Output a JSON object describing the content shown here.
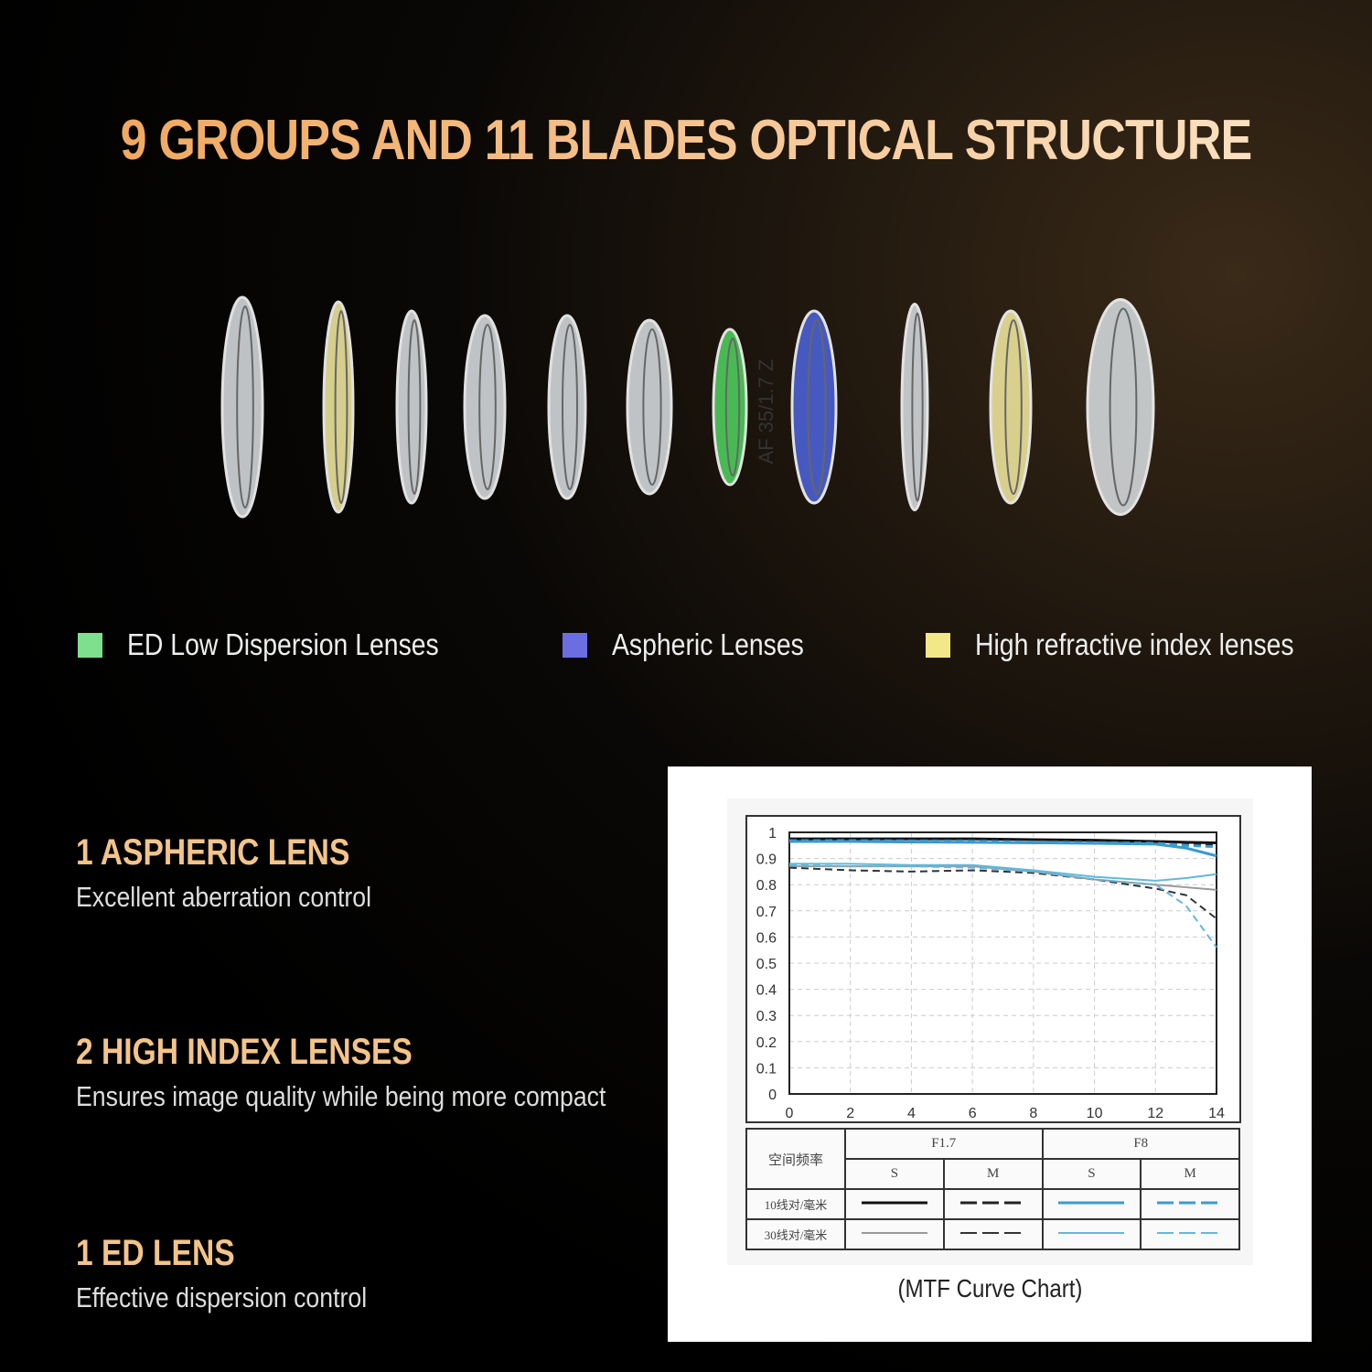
{
  "title": "9 GROUPS AND 11 BLADES OPTICAL STRUCTURE",
  "lens_marking": "AF 35/1.7 Z",
  "lenses": [
    "clear",
    "yellow",
    "clear",
    "clear",
    "clear",
    "clear",
    "green",
    "blue",
    "clear",
    "yellow",
    "clear"
  ],
  "legend": [
    {
      "label": "ED Low Dispersion Lenses",
      "color": "#7ee08e"
    },
    {
      "label": "Aspheric Lenses",
      "color": "#6b6ee0"
    },
    {
      "label": "High refractive index lenses",
      "color": "#f2e88a"
    }
  ],
  "features": [
    {
      "title": "1 ASPHERIC LENS",
      "desc": "Excellent aberration control"
    },
    {
      "title": "2 HIGH INDEX LENSES",
      "desc": "Ensures image quality while being more compact"
    },
    {
      "title": "1 ED LENS",
      "desc": "Effective dispersion control"
    }
  ],
  "chart_caption": "(MTF Curve Chart)",
  "chart_data": {
    "type": "line",
    "xlim": [
      0,
      14
    ],
    "ylim": [
      0,
      1
    ],
    "grid": true,
    "xticks": [
      "0",
      "2",
      "4",
      "6",
      "8",
      "10",
      "12",
      "14"
    ],
    "yticks": [
      "0",
      "0.1",
      "0.2",
      "0.3",
      "0.4",
      "0.5",
      "0.6",
      "0.7",
      "0.8",
      "0.9",
      "1"
    ],
    "x": [
      0,
      2,
      4,
      6,
      8,
      10,
      12,
      13,
      14
    ],
    "series": [
      {
        "id": "10-f17-s",
        "color": "#111111",
        "dash": false,
        "width": 3,
        "values": [
          0.975,
          0.975,
          0.975,
          0.975,
          0.972,
          0.97,
          0.965,
          0.962,
          0.96
        ]
      },
      {
        "id": "10-f17-m",
        "color": "#222222",
        "dash": true,
        "width": 3,
        "values": [
          0.97,
          0.97,
          0.97,
          0.97,
          0.965,
          0.965,
          0.96,
          0.955,
          0.95
        ]
      },
      {
        "id": "10-f8-s",
        "color": "#3a9ad0",
        "dash": false,
        "width": 3,
        "values": [
          0.965,
          0.965,
          0.963,
          0.962,
          0.96,
          0.958,
          0.955,
          0.94,
          0.91
        ]
      },
      {
        "id": "10-f8-m",
        "color": "#3a9ad0",
        "dash": true,
        "width": 3,
        "values": [
          0.968,
          0.968,
          0.967,
          0.966,
          0.963,
          0.96,
          0.958,
          0.95,
          0.945
        ]
      },
      {
        "id": "30-f17-s",
        "color": "#999999",
        "dash": false,
        "width": 2,
        "values": [
          0.87,
          0.87,
          0.87,
          0.87,
          0.85,
          0.82,
          0.8,
          0.79,
          0.78
        ]
      },
      {
        "id": "30-f17-m",
        "color": "#333333",
        "dash": true,
        "width": 2,
        "values": [
          0.865,
          0.855,
          0.85,
          0.855,
          0.845,
          0.82,
          0.785,
          0.76,
          0.67
        ]
      },
      {
        "id": "30-f8-s",
        "color": "#62b8dc",
        "dash": false,
        "width": 2,
        "values": [
          0.88,
          0.88,
          0.875,
          0.875,
          0.855,
          0.83,
          0.815,
          0.825,
          0.84
        ]
      },
      {
        "id": "30-f8-m",
        "color": "#62b8dc",
        "dash": true,
        "width": 2,
        "values": [
          0.875,
          0.87,
          0.87,
          0.865,
          0.85,
          0.82,
          0.8,
          0.72,
          0.56
        ]
      }
    ],
    "legend_table": {
      "header": "空间频率",
      "apertures": [
        "F1.7",
        "F8"
      ],
      "sub": [
        "S",
        "M",
        "S",
        "M"
      ],
      "rows": [
        "10线对/毫米",
        "30线对/毫米"
      ]
    }
  }
}
